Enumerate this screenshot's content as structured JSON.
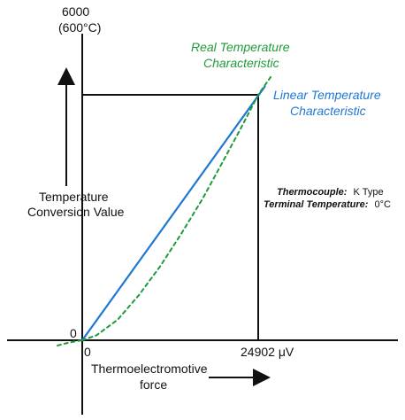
{
  "chart_data": {
    "type": "line",
    "top_value_label": "6000",
    "top_value_unit": "(600°C)",
    "y_axis_label_lines": [
      "Temperature",
      "Conversion Value"
    ],
    "x_axis_label_lines": [
      "Thermoelectromotive",
      "force"
    ],
    "origin_x_label": "0",
    "origin_y_label": "0",
    "x_max_label": "24902 μV",
    "real_series_label_lines": [
      "Real Temperature",
      "Characteristic"
    ],
    "linear_series_label_lines": [
      "Linear Temperature",
      "Characteristic"
    ],
    "note_thermocouple_label": "Thermocouple:",
    "note_thermocouple_value": "K Type",
    "note_terminal_label": "Terminal Temperature:",
    "note_terminal_value": "0°C",
    "xlim": [
      0,
      24902
    ],
    "ylim": [
      0,
      6000
    ],
    "series": [
      {
        "key": "linear",
        "values": [
          [
            0,
            0
          ],
          [
            24902,
            6000
          ]
        ]
      },
      {
        "key": "real",
        "values": [
          [
            0,
            0
          ],
          [
            2000,
            120
          ],
          [
            5000,
            500
          ],
          [
            8000,
            1100
          ],
          [
            11000,
            1800
          ],
          [
            14000,
            2600
          ],
          [
            17000,
            3450
          ],
          [
            20000,
            4400
          ],
          [
            22500,
            5200
          ],
          [
            24902,
            6000
          ]
        ]
      }
    ],
    "colors": {
      "axis": "#111111",
      "linear": "#1f77d4",
      "real": "#1f9a3a"
    }
  }
}
